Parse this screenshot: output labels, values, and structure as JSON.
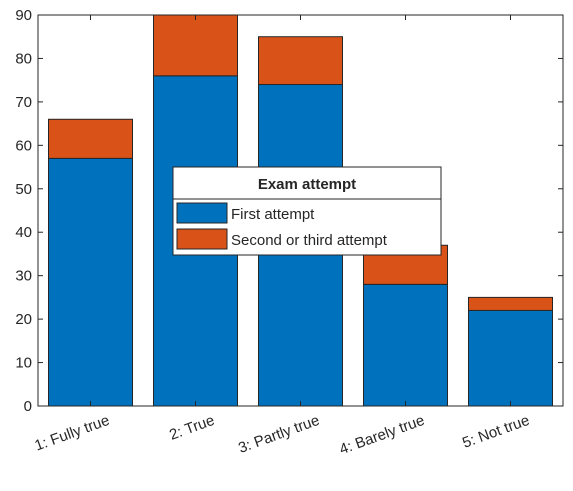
{
  "chart_data": {
    "type": "bar",
    "stacked": true,
    "categories": [
      "1: Fully true",
      "2: True",
      "3: Partly true",
      "4: Barely true",
      "5: Not true"
    ],
    "series": [
      {
        "name": "First attempt",
        "values": [
          57,
          76,
          74,
          28,
          22
        ],
        "color": "#0072BD"
      },
      {
        "name": "Second or third attempt",
        "values": [
          9,
          14,
          11,
          9,
          3
        ],
        "color": "#D95319"
      }
    ],
    "ylim": [
      0,
      90
    ],
    "yticks": [
      0,
      10,
      20,
      30,
      40,
      50,
      60,
      70,
      80,
      90
    ],
    "legend": {
      "title": "Exam attempt",
      "placement": "center"
    },
    "grid": false,
    "title": "",
    "xlabel": "",
    "ylabel": ""
  }
}
